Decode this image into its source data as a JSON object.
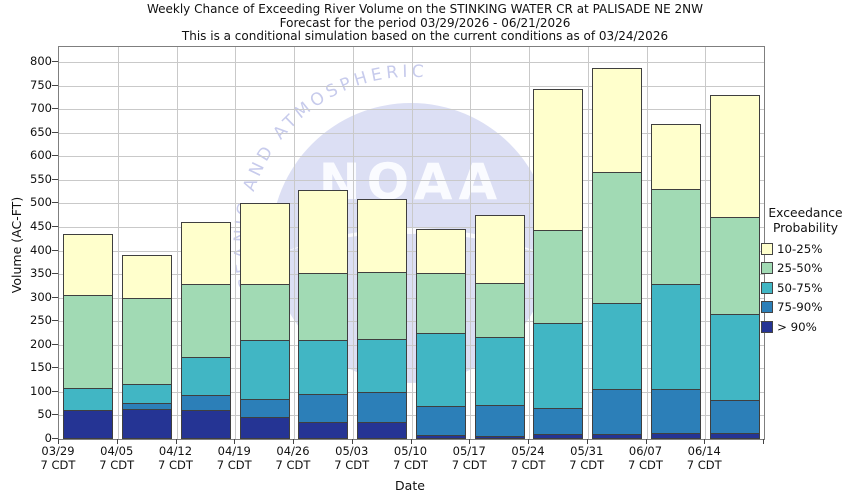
{
  "title": {
    "line1": "Weekly Chance of Exceeding River Volume on the STINKING WATER CR at PALISADE NE 2NW",
    "line2": "Forecast for the period 03/29/2026 - 06/21/2026",
    "line3": "This is a conditional simulation based on the current conditions as of 03/24/2026"
  },
  "watermark": {
    "text": "NOAA",
    "arc_text": "L OCEANIC AND ATMOSPHERIC"
  },
  "chart_data": {
    "type": "bar",
    "stacked": true,
    "title": "Weekly Chance of Exceeding River Volume on the STINKING WATER CR at PALISADE NE 2NW",
    "xlabel": "Date",
    "ylabel": "Volume (AC-FT)",
    "ylim": [
      0,
      832
    ],
    "yticks": [
      0,
      50,
      100,
      150,
      200,
      250,
      300,
      350,
      400,
      450,
      500,
      550,
      600,
      650,
      700,
      750,
      800
    ],
    "grid": true,
    "x_tick_suffix": "7 CDT",
    "categories": [
      "03/29",
      "04/05",
      "04/12",
      "04/19",
      "04/26",
      "05/03",
      "05/10",
      "05/17",
      "05/24",
      "05/31",
      "06/07",
      "06/14"
    ],
    "series": [
      {
        "name": "> 90%",
        "color": "#253494",
        "values": [
          60,
          62,
          61,
          44,
          35,
          34,
          6,
          4,
          9,
          8,
          10,
          10
        ]
      },
      {
        "name": "75-90%",
        "color": "#2C7FB8",
        "values": [
          0,
          13,
          32,
          39,
          60,
          65,
          62,
          66,
          55,
          97,
          95,
          71
        ]
      },
      {
        "name": "50-75%",
        "color": "#41B6C4",
        "values": [
          47,
          40,
          80,
          127,
          115,
          113,
          156,
          146,
          182,
          184,
          225,
          184
        ]
      },
      {
        "name": "25-50%",
        "color": "#A1DAB4",
        "values": [
          200,
          185,
          157,
          120,
          142,
          143,
          129,
          115,
          199,
          278,
          203,
          207
        ]
      },
      {
        "name": "10-25%",
        "color": "#FFFFCC",
        "values": [
          128,
          90,
          130,
          170,
          176,
          154,
          92,
          145,
          299,
          220,
          135,
          258
        ]
      }
    ],
    "bar_totals": [
      435,
      390,
      460,
      500,
      528,
      509,
      445,
      476,
      744,
      787,
      668,
      730
    ],
    "legend": {
      "title_line1": "Exceedance",
      "title_line2": "Probability",
      "position": "right",
      "order_top_to_bottom": [
        "10-25%",
        "25-50%",
        "50-75%",
        "75-90%",
        "> 90%"
      ]
    },
    "colors": {
      "background": "#ffffff",
      "grid": "#c9c9c9",
      "frame": "#7f7f7f",
      "bar_border": "#3f3f3f",
      "watermark_fill": "#dcdff4",
      "watermark_text": "#c7cbec"
    }
  }
}
